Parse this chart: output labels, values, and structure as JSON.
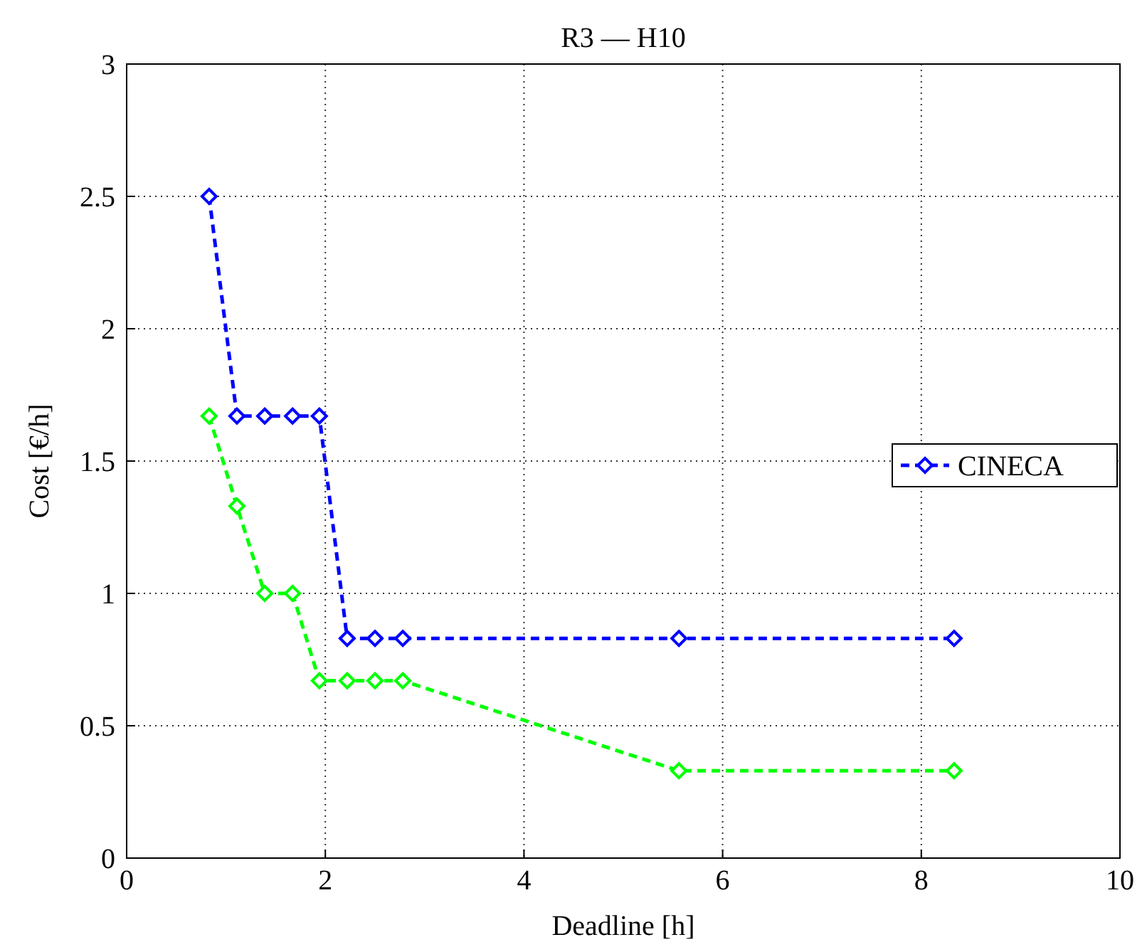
{
  "chart_data": {
    "type": "line",
    "title": "R3 — H10",
    "xlabel": "Deadline [h]",
    "ylabel": "Cost [€/h]",
    "x": [
      0.83,
      1.11,
      1.39,
      1.67,
      1.94,
      2.22,
      2.5,
      2.78,
      5.56,
      8.33
    ],
    "series": [
      {
        "name": "CINECA",
        "color": "#0000ff",
        "values": [
          2.5,
          1.67,
          1.67,
          1.67,
          1.67,
          0.83,
          0.83,
          0.83,
          0.83,
          0.83
        ]
      },
      {
        "color": "#00ff00",
        "values": [
          1.67,
          1.33,
          1.0,
          1.0,
          0.67,
          0.67,
          0.67,
          0.67,
          0.33,
          0.33
        ]
      }
    ],
    "xlim": [
      0,
      10
    ],
    "xticks": [
      0,
      2,
      4,
      6,
      8,
      10
    ],
    "ylim": [
      0,
      3
    ],
    "yticks": [
      0,
      0.5,
      1,
      1.5,
      2,
      2.5,
      3
    ],
    "grid": true,
    "legend": "right",
    "marker": "diamond",
    "line_style": "dashed"
  }
}
